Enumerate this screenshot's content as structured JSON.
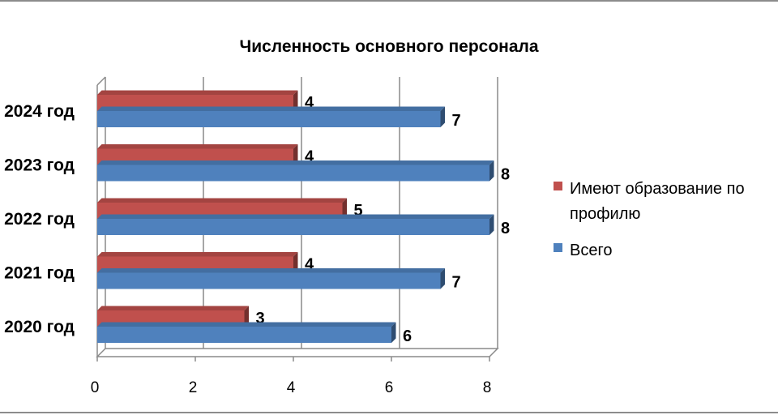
{
  "chart_data": {
    "type": "bar",
    "orientation": "horizontal",
    "title": "Численность основного персонала",
    "categories": [
      "2024 год",
      "2023 год",
      "2022 год",
      "2021 год",
      "2020 год"
    ],
    "series": [
      {
        "name": "Имеют образование по профилю",
        "values": [
          4,
          4,
          5,
          4,
          3
        ],
        "color": "#c0504d"
      },
      {
        "name": "Всего",
        "values": [
          7,
          8,
          8,
          7,
          6
        ],
        "color": "#4f81bd"
      }
    ],
    "xlim": [
      0,
      8
    ],
    "x_ticks": [
      0,
      2,
      4,
      6,
      8
    ],
    "grid": true,
    "legend_position": "right",
    "legend_lines": [
      [
        "Имеют образование по",
        "профилю"
      ],
      [
        "Всего"
      ]
    ]
  }
}
